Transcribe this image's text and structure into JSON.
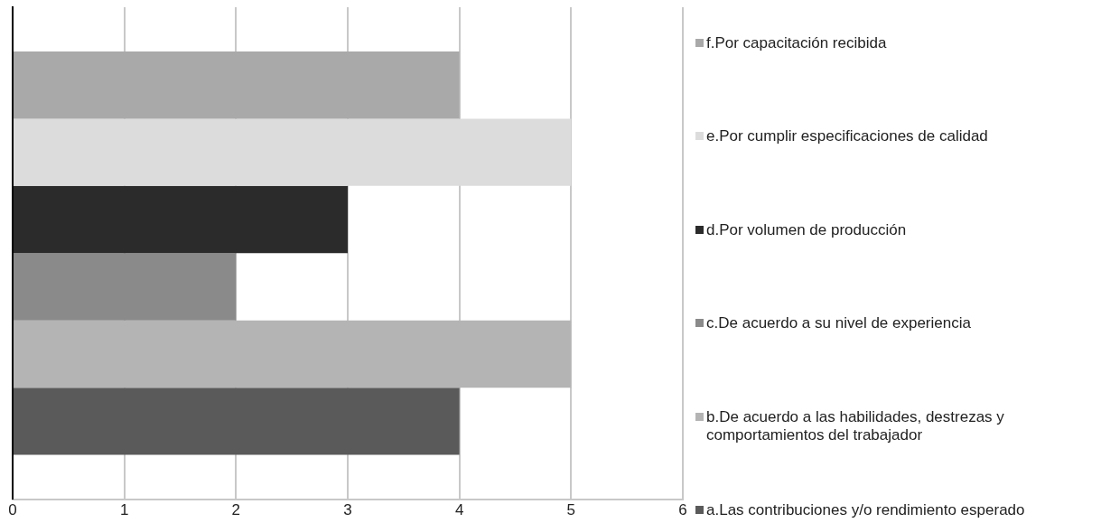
{
  "chart_data": {
    "type": "bar",
    "orientation": "horizontal",
    "categories": [
      null
    ],
    "series": [
      {
        "name": "a.Las contribuciones y/o rendimiento esperado",
        "color": "#5a5a5a",
        "values": [
          4
        ]
      },
      {
        "name": "b.De acuerdo a las habilidades, destrezas y comportamientos del trabajador",
        "color": "#b4b4b4",
        "values": [
          5
        ]
      },
      {
        "name": "c.De acuerdo a su nivel de experiencia",
        "color": "#8a8a8a",
        "values": [
          2
        ]
      },
      {
        "name": "d.Por volumen de producción",
        "color": "#2b2b2b",
        "values": [
          3
        ]
      },
      {
        "name": "e.Por cumplir especificaciones de calidad",
        "color": "#dcdcdc",
        "values": [
          5
        ]
      },
      {
        "name": "f.Por capacitación recibida",
        "color": "#a9a9a9",
        "values": [
          4
        ]
      }
    ],
    "xlim": [
      0,
      6
    ],
    "xticks": [
      0,
      1,
      2,
      3,
      4,
      5,
      6
    ],
    "grid": "x",
    "legend": "right"
  }
}
